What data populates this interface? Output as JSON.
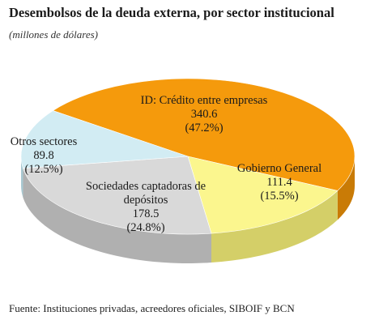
{
  "chart_data": {
    "type": "pie",
    "title": "Desembolsos de la deuda externa, por sector institucional",
    "subtitle": "(millones de dólares)",
    "source": "Fuente: Instituciones privadas, acreedores oficiales, SIBOIF y BCN",
    "slices": [
      {
        "label": "ID: Crédito entre empresas",
        "value": 340.6,
        "value_text": "340.6",
        "percent_text": "(47.2%)",
        "color": "#f59a0c",
        "side_color": "#c97b06"
      },
      {
        "label": "Gobierno General",
        "value": 111.4,
        "value_text": "111.4",
        "percent_text": "(15.5%)",
        "color": "#fbf68e",
        "side_color": "#d4cf68"
      },
      {
        "label": "Sociedades captadoras de depósitos",
        "label_lines": [
          "Sociedades captadoras de",
          "depósitos"
        ],
        "value": 178.5,
        "value_text": "178.5",
        "percent_text": "(24.8%)",
        "color": "#d9d9d9",
        "side_color": "#b0b0b0"
      },
      {
        "label": "Otros sectores",
        "value": 89.8,
        "value_text": "89.8",
        "percent_text": "(12.5%)",
        "color": "#d2ecf3",
        "side_color": "#a8c8d1"
      }
    ]
  }
}
